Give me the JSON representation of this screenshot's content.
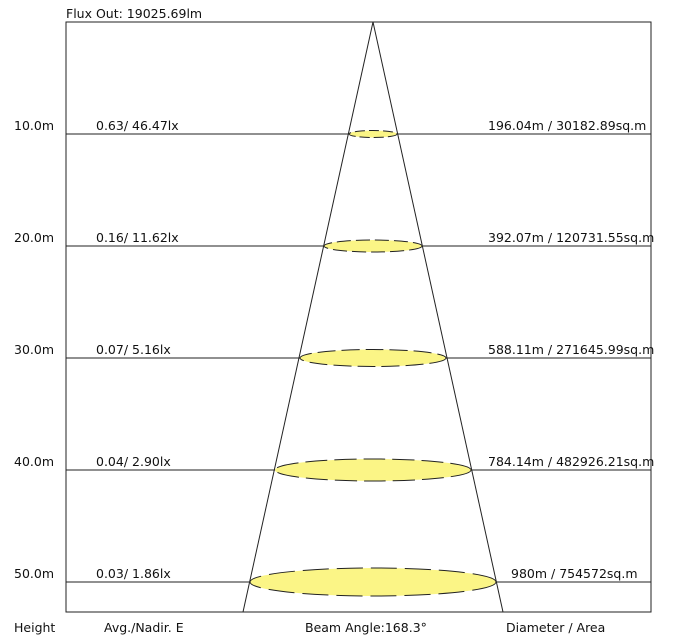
{
  "flux_out": "Flux Out: 19025.69lm",
  "rows": [
    {
      "height": "10.0m",
      "illuminance": "0.63/ 46.47lx",
      "diameter_area": "196.04m / 30182.89sq.m"
    },
    {
      "height": "20.0m",
      "illuminance": "0.16/ 11.62lx",
      "diameter_area": "392.07m / 120731.55sq.m"
    },
    {
      "height": "30.0m",
      "illuminance": "0.07/ 5.16lx",
      "diameter_area": "588.11m / 271645.99sq.m"
    },
    {
      "height": "40.0m",
      "illuminance": "0.04/ 2.90lx",
      "diameter_area": "784.14m / 482926.21sq.m"
    },
    {
      "height": "50.0m",
      "illuminance": "0.03/ 1.86lx",
      "diameter_area": "980m / 754572sq.m"
    }
  ],
  "footer": {
    "height_label": "Height",
    "illuminance_label": "Avg./Nadir. E",
    "beam_angle": "Beam Angle:168.3°",
    "diameter_label": "Diameter / Area"
  },
  "colors": {
    "ellipse_fill": "#fbf586",
    "line": "#222222"
  }
}
